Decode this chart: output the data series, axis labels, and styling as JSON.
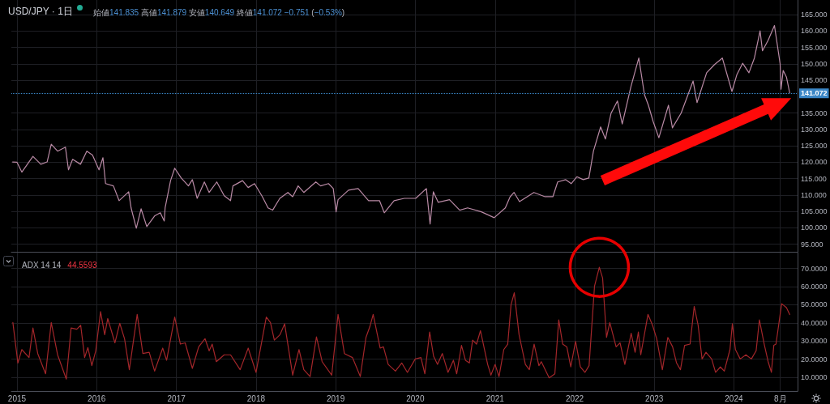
{
  "chart_data": [
    {
      "type": "line",
      "title": "USD/JPY · 1日",
      "subtitle": "始値141.835 高値141.879 安値140.649 終値141.072 −0.751 (−0.53%)",
      "x": [
        "2014-12-12",
        "2015-01-01",
        "2015-01-23",
        "2015-03-15",
        "2015-04-20",
        "2015-05-19",
        "2015-06-07",
        "2015-07-06",
        "2015-08-11",
        "2015-08-25",
        "2015-09-13",
        "2015-10-19",
        "2015-11-17",
        "2015-12-13",
        "2016-01-12",
        "2016-01-30",
        "2016-02-11",
        "2016-03-18",
        "2016-04-13",
        "2016-05-27",
        "2016-06-07",
        "2016-07-01",
        "2016-07-23",
        "2016-08-18",
        "2016-09-24",
        "2016-10-19",
        "2016-11-06",
        "2016-11-10",
        "2016-12-05",
        "2016-12-24",
        "2017-01-23",
        "2017-02-25",
        "2017-03-15",
        "2017-04-06",
        "2017-05-09",
        "2017-05-31",
        "2017-07-05",
        "2017-08-08",
        "2017-09-06",
        "2017-09-17",
        "2017-10-31",
        "2017-11-26",
        "2017-12-25",
        "2018-01-30",
        "2018-02-25",
        "2018-03-18",
        "2018-04-20",
        "2018-05-27",
        "2018-06-18",
        "2018-07-13",
        "2018-08-08",
        "2018-10-02",
        "2018-10-24",
        "2018-11-29",
        "2018-12-21",
        "2019-01-03",
        "2019-01-12",
        "2019-03-01",
        "2019-04-14",
        "2019-06-01",
        "2019-07-21",
        "2019-08-12",
        "2019-09-26",
        "2019-11-12",
        "2020-01-03",
        "2020-02-21",
        "2020-03-09",
        "2020-03-24",
        "2020-04-15",
        "2020-06-06",
        "2020-07-23",
        "2020-08-28",
        "2020-10-30",
        "2020-12-28",
        "2021-02-17",
        "2021-03-11",
        "2021-03-29",
        "2021-04-23",
        "2021-06-28",
        "2021-08-18",
        "2021-09-23",
        "2021-10-15",
        "2021-11-21",
        "2021-12-16",
        "2022-01-11",
        "2022-02-09",
        "2022-03-07",
        "2022-03-28",
        "2022-04-30",
        "2022-05-22",
        "2022-06-17",
        "2022-07-16",
        "2022-08-07",
        "2022-09-16",
        "2022-10-22",
        "2022-11-17",
        "2022-12-05",
        "2022-12-27",
        "2023-01-22",
        "2023-03-07",
        "2023-03-25",
        "2023-05-04",
        "2023-06-28",
        "2023-07-16",
        "2023-08-29",
        "2023-10-04",
        "2023-11-09",
        "2023-12-23",
        "2024-01-15",
        "2024-02-10",
        "2024-03-10",
        "2024-04-04",
        "2024-04-30",
        "2024-05-11",
        "2024-06-06",
        "2024-07-05",
        "2024-07-20",
        "2024-07-31",
        "2024-08-04",
        "2024-08-14",
        "2024-08-29",
        "2024-09-13"
      ],
      "values": [
        120.1,
        120.0,
        117.0,
        121.8,
        119.4,
        120.1,
        125.5,
        123.4,
        124.6,
        117.7,
        120.9,
        119.4,
        123.4,
        122.2,
        117.7,
        121.4,
        113.5,
        112.8,
        108.3,
        111.0,
        106.1,
        99.9,
        105.8,
        100.4,
        103.7,
        104.6,
        102.1,
        106.1,
        114.4,
        118.2,
        115.2,
        112.8,
        114.7,
        109.0,
        114.0,
        110.8,
        114.0,
        109.8,
        108.3,
        112.8,
        114.4,
        112.3,
        113.5,
        109.5,
        106.1,
        105.4,
        109.0,
        110.8,
        109.5,
        112.8,
        110.8,
        114.0,
        112.8,
        113.5,
        112.0,
        104.9,
        108.6,
        111.5,
        112.0,
        108.3,
        108.3,
        104.6,
        108.3,
        109.0,
        109.0,
        112.0,
        101.2,
        111.0,
        107.8,
        108.6,
        105.4,
        106.1,
        104.9,
        103.1,
        106.1,
        109.5,
        110.8,
        108.0,
        110.8,
        109.5,
        109.5,
        114.0,
        114.7,
        113.5,
        115.6,
        114.7,
        115.2,
        123.4,
        130.8,
        127.1,
        135.0,
        138.7,
        131.7,
        143.1,
        151.8,
        140.6,
        137.4,
        132.4,
        127.5,
        137.4,
        130.5,
        135.0,
        144.8,
        138.2,
        147.3,
        149.8,
        151.8,
        141.6,
        146.8,
        150.2,
        147.3,
        151.8,
        160.1,
        154.0,
        157.2,
        161.7,
        155.0,
        150.0,
        142.3,
        148.0,
        146.0,
        141.1
      ],
      "color": "#b98aa5",
      "xlim": [
        "2014-12-06",
        "2024-10-19"
      ],
      "xticks": [
        "2015",
        "2016",
        "2017",
        "2018",
        "2019",
        "2020",
        "2021",
        "2022",
        "2023",
        "2024",
        "2024-08"
      ],
      "ylim": [
        92.7,
        169.5
      ],
      "yticks": [
        {
          "value": 95,
          "label": "95.000"
        },
        {
          "value": 100,
          "label": "100.000"
        },
        {
          "value": 105,
          "label": "105.000"
        },
        {
          "value": 110,
          "label": "110.000"
        },
        {
          "value": 115,
          "label": "115.000"
        },
        {
          "value": 120,
          "label": "120.000"
        },
        {
          "value": 125,
          "label": "125.000"
        },
        {
          "value": 130,
          "label": "130.000"
        },
        {
          "value": 135,
          "label": "135.000"
        },
        {
          "value": 145,
          "label": "145.000"
        },
        {
          "value": 150,
          "label": "150.000"
        },
        {
          "value": 155,
          "label": "155.000"
        },
        {
          "value": 160,
          "label": "160.000"
        },
        {
          "value": 165,
          "label": "165.000"
        }
      ],
      "grid": true,
      "tick_labels": "y",
      "ref_lines": [
        {
          "axis": "y",
          "value": 141.072,
          "label": "141.072",
          "color": "#3a86c6",
          "line_style": "dotted"
        }
      ]
    },
    {
      "type": "line",
      "title": "ADX 14 14",
      "subtitle": "44.5593",
      "x": [
        "2014-12-13",
        "2015-01-05",
        "2015-01-23",
        "2015-02-25",
        "2015-03-15",
        "2015-04-06",
        "2015-05-12",
        "2015-06-07",
        "2015-07-06",
        "2015-08-15",
        "2015-09-06",
        "2015-10-02",
        "2015-10-20",
        "2015-11-07",
        "2015-11-22",
        "2015-12-10",
        "2015-12-28",
        "2016-01-19",
        "2016-02-07",
        "2016-02-21",
        "2016-03-25",
        "2016-04-16",
        "2016-05-08",
        "2016-05-30",
        "2016-07-05",
        "2016-07-31",
        "2016-08-29",
        "2016-09-23",
        "2016-10-30",
        "2016-11-17",
        "2016-12-24",
        "2017-01-19",
        "2017-02-10",
        "2017-03-15",
        "2017-04-13",
        "2017-05-12",
        "2017-05-31",
        "2017-06-14",
        "2017-07-03",
        "2017-08-08",
        "2017-09-06",
        "2017-10-20",
        "2017-11-26",
        "2018-01-01",
        "2018-02-17",
        "2018-03-08",
        "2018-03-26",
        "2018-04-21",
        "2018-05-12",
        "2018-06-18",
        "2018-07-17",
        "2018-08-08",
        "2018-09-06",
        "2018-10-05",
        "2018-10-31",
        "2018-12-14",
        "2019-01-12",
        "2019-02-10",
        "2019-03-19",
        "2019-04-24",
        "2019-05-20",
        "2019-06-07",
        "2019-06-22",
        "2019-07-24",
        "2019-08-08",
        "2019-08-30",
        "2019-10-02",
        "2019-10-31",
        "2019-11-26",
        "2020-01-01",
        "2020-01-27",
        "2020-02-14",
        "2020-03-07",
        "2020-03-25",
        "2020-04-12",
        "2020-05-04",
        "2020-05-30",
        "2020-06-24",
        "2020-07-09",
        "2020-07-31",
        "2020-08-18",
        "2020-09-05",
        "2020-09-20",
        "2020-10-08",
        "2020-10-26",
        "2020-11-28",
        "2020-12-13",
        "2021-01-01",
        "2021-01-19",
        "2021-02-10",
        "2021-02-28",
        "2021-03-15",
        "2021-03-30",
        "2021-04-21",
        "2021-05-20",
        "2021-06-07",
        "2021-06-29",
        "2021-07-21",
        "2021-08-01",
        "2021-09-06",
        "2021-10-02",
        "2021-10-20",
        "2021-11-07",
        "2021-11-26",
        "2021-12-14",
        "2022-01-05",
        "2022-01-27",
        "2022-02-17",
        "2022-03-08",
        "2022-04-02",
        "2022-04-24",
        "2022-05-09",
        "2022-05-27",
        "2022-06-11",
        "2022-07-10",
        "2022-07-28",
        "2022-08-19",
        "2022-09-17",
        "2022-10-05",
        "2022-10-20",
        "2022-10-31",
        "2022-12-03",
        "2022-12-24",
        "2023-01-12",
        "2023-02-07",
        "2023-03-04",
        "2023-03-26",
        "2023-04-13",
        "2023-05-01",
        "2023-05-20",
        "2023-06-14",
        "2023-07-03",
        "2023-07-21",
        "2023-08-08",
        "2023-08-26",
        "2023-09-21",
        "2023-10-09",
        "2023-10-31",
        "2023-11-18",
        "2023-12-14",
        "2023-12-25",
        "2024-01-08",
        "2024-01-30",
        "2024-02-25",
        "2024-03-21",
        "2024-04-12",
        "2024-04-27",
        "2024-05-19",
        "2024-06-06",
        "2024-06-21",
        "2024-07-02",
        "2024-07-12",
        "2024-08-07",
        "2024-08-29",
        "2024-09-13"
      ],
      "values": [
        40.2,
        17.9,
        25.3,
        20.9,
        37.2,
        23.1,
        11.9,
        40.2,
        22.4,
        9.0,
        37.2,
        36.5,
        38.7,
        20.9,
        26.4,
        16.4,
        24.6,
        46.2,
        33.5,
        42.4,
        29.0,
        39.8,
        31.3,
        14.2,
        44.7,
        23.1,
        23.8,
        13.4,
        26.1,
        19.4,
        43.2,
        28.3,
        29.0,
        14.9,
        26.8,
        31.3,
        24.6,
        28.3,
        18.6,
        22.4,
        22.4,
        14.2,
        26.1,
        12.7,
        43.2,
        40.2,
        30.5,
        33.5,
        39.5,
        11.2,
        25.3,
        14.2,
        10.4,
        32.3,
        18.6,
        11.2,
        44.7,
        23.1,
        20.9,
        10.4,
        32.0,
        38.0,
        44.7,
        26.1,
        26.8,
        17.1,
        13.4,
        17.9,
        12.7,
        20.1,
        20.9,
        11.9,
        35.0,
        21.6,
        17.1,
        23.1,
        12.7,
        19.4,
        11.9,
        27.6,
        19.4,
        17.9,
        30.5,
        28.3,
        35.7,
        17.1,
        11.2,
        17.1,
        10.4,
        25.3,
        28.3,
        49.9,
        56.6,
        33.5,
        17.1,
        14.2,
        28.3,
        16.4,
        18.6,
        9.7,
        11.9,
        41.7,
        28.3,
        26.8,
        15.7,
        29.8,
        15.7,
        12.7,
        16.4,
        60.3,
        70.7,
        64.8,
        32.0,
        40.2,
        26.8,
        29.0,
        17.1,
        34.3,
        23.8,
        35.0,
        22.4,
        44.7,
        38.7,
        31.3,
        14.2,
        32.0,
        26.8,
        17.9,
        14.2,
        27.6,
        28.3,
        49.1,
        38.7,
        20.1,
        23.8,
        20.1,
        12.7,
        15.7,
        13.4,
        25.3,
        39.5,
        25.3,
        20.1,
        22.4,
        20.1,
        24.6,
        41.7,
        28.3,
        18.6,
        12.7,
        27.6,
        28.3,
        50.6,
        48.4,
        44.6
      ],
      "color": "#a3262a",
      "xlim": [
        "2014-12-06",
        "2024-10-19"
      ],
      "xticks": [
        {
          "value": "2015",
          "label": "2015"
        },
        {
          "value": "2016",
          "label": "2016"
        },
        {
          "value": "2017",
          "label": "2017"
        },
        {
          "value": "2018",
          "label": "2018"
        },
        {
          "value": "2019",
          "label": "2019"
        },
        {
          "value": "2020",
          "label": "2020"
        },
        {
          "value": "2021",
          "label": "2021"
        },
        {
          "value": "2022",
          "label": "2022"
        },
        {
          "value": "2023",
          "label": "2023"
        },
        {
          "value": "2024",
          "label": "2024"
        },
        {
          "value": "2024-08",
          "label": "8月"
        }
      ],
      "ylim": [
        2.4,
        78.8
      ],
      "yticks": [
        {
          "value": 10,
          "label": "10.0000"
        },
        {
          "value": 20,
          "label": "20.0000"
        },
        {
          "value": 30,
          "label": "30.0000"
        },
        {
          "value": 40,
          "label": "40.0000"
        },
        {
          "value": 50,
          "label": "50.0000"
        },
        {
          "value": 60,
          "label": "60.0000"
        },
        {
          "value": 70,
          "label": "70.0000"
        }
      ],
      "grid": true
    }
  ]
}
